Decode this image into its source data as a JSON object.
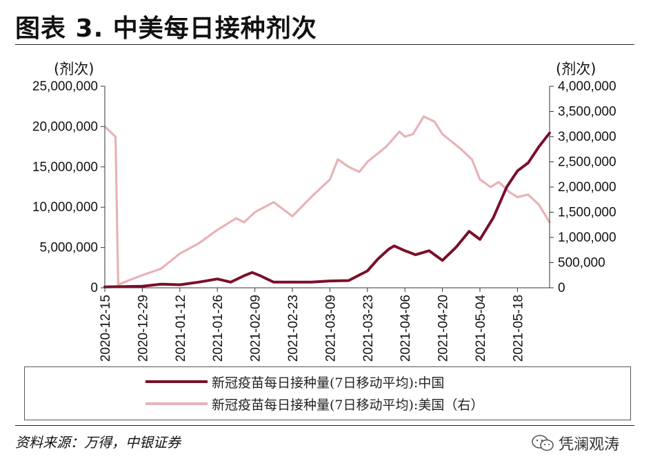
{
  "header": {
    "title": "图表 3. 中美每日接种剂次"
  },
  "footer": {
    "source": "资料来源：万得，中银证券",
    "watermark": "凭澜观涛"
  },
  "colors": {
    "china": "#7a0f2a",
    "us": "#e8b2b5",
    "axis": "#333333"
  },
  "chart_data": {
    "type": "line",
    "title": "图表 3. 中美每日接种剂次",
    "y_left": {
      "unit_label": "(剂次)",
      "range": [
        0,
        25000000
      ],
      "ticks": [
        0,
        5000000,
        10000000,
        15000000,
        20000000,
        25000000
      ],
      "tick_labels": [
        "0",
        "5,000,000",
        "10,000,000",
        "15,000,000",
        "20,000,000",
        "25,000,000"
      ]
    },
    "y_right": {
      "unit_label": "(剂次)",
      "range": [
        0,
        4000000
      ],
      "ticks": [
        0,
        500000,
        1000000,
        1500000,
        2000000,
        2500000,
        3000000,
        3500000,
        4000000
      ],
      "tick_labels": [
        "0",
        "500,000",
        "1,000,000",
        "1,500,000",
        "2,000,000",
        "2,500,000",
        "3,000,000",
        "3,500,000",
        "4,000,000"
      ]
    },
    "x": {
      "start": "2020-12-15",
      "end": "2021-05-30",
      "tick_labels": [
        "2020-12-15",
        "2020-12-29",
        "2021-01-12",
        "2021-01-26",
        "2021-02-09",
        "2021-02-23",
        "2021-03-09",
        "2021-03-23",
        "2021-04-06",
        "2021-04-20",
        "2021-05-04",
        "2021-05-18"
      ]
    },
    "series": [
      {
        "name": "新冠疫苗每日接种量(7日移动平均):中国",
        "axis": "left",
        "color": "#7a0f2a",
        "points": [
          [
            "2020-12-15",
            100000
          ],
          [
            "2020-12-22",
            150000
          ],
          [
            "2020-12-29",
            200000
          ],
          [
            "2021-01-05",
            450000
          ],
          [
            "2021-01-12",
            380000
          ],
          [
            "2021-01-19",
            700000
          ],
          [
            "2021-01-26",
            1100000
          ],
          [
            "2021-01-31",
            700000
          ],
          [
            "2021-02-05",
            1500000
          ],
          [
            "2021-02-08",
            1900000
          ],
          [
            "2021-02-11",
            1500000
          ],
          [
            "2021-02-16",
            700000
          ],
          [
            "2021-02-23",
            700000
          ],
          [
            "2021-03-02",
            700000
          ],
          [
            "2021-03-09",
            850000
          ],
          [
            "2021-03-16",
            900000
          ],
          [
            "2021-03-23",
            2100000
          ],
          [
            "2021-03-27",
            3600000
          ],
          [
            "2021-03-31",
            4800000
          ],
          [
            "2021-04-02",
            5200000
          ],
          [
            "2021-04-06",
            4600000
          ],
          [
            "2021-04-10",
            4100000
          ],
          [
            "2021-04-15",
            4600000
          ],
          [
            "2021-04-20",
            3400000
          ],
          [
            "2021-04-25",
            5000000
          ],
          [
            "2021-04-30",
            7000000
          ],
          [
            "2021-05-04",
            6000000
          ],
          [
            "2021-05-09",
            8700000
          ],
          [
            "2021-05-14",
            12500000
          ],
          [
            "2021-05-18",
            14500000
          ],
          [
            "2021-05-22",
            15500000
          ],
          [
            "2021-05-26",
            17500000
          ],
          [
            "2021-05-30",
            19200000
          ]
        ]
      },
      {
        "name": "新冠疫苗每日接种量(7日移动平均):美国（右）",
        "axis": "right",
        "color": "#e8b2b5",
        "points": [
          [
            "2020-12-15",
            3200000
          ],
          [
            "2020-12-17",
            3100000
          ],
          [
            "2020-12-19",
            3000000
          ],
          [
            "2020-12-20",
            60000
          ],
          [
            "2020-12-24",
            150000
          ],
          [
            "2020-12-29",
            250000
          ],
          [
            "2021-01-05",
            380000
          ],
          [
            "2021-01-12",
            680000
          ],
          [
            "2021-01-19",
            880000
          ],
          [
            "2021-01-26",
            1150000
          ],
          [
            "2021-02-02",
            1380000
          ],
          [
            "2021-02-05",
            1300000
          ],
          [
            "2021-02-09",
            1500000
          ],
          [
            "2021-02-16",
            1700000
          ],
          [
            "2021-02-23",
            1420000
          ],
          [
            "2021-03-02",
            1800000
          ],
          [
            "2021-03-09",
            2150000
          ],
          [
            "2021-03-12",
            2550000
          ],
          [
            "2021-03-16",
            2400000
          ],
          [
            "2021-03-20",
            2300000
          ],
          [
            "2021-03-23",
            2500000
          ],
          [
            "2021-03-30",
            2800000
          ],
          [
            "2021-04-04",
            3100000
          ],
          [
            "2021-04-06",
            3000000
          ],
          [
            "2021-04-09",
            3050000
          ],
          [
            "2021-04-13",
            3400000
          ],
          [
            "2021-04-17",
            3300000
          ],
          [
            "2021-04-20",
            3050000
          ],
          [
            "2021-04-27",
            2750000
          ],
          [
            "2021-05-01",
            2550000
          ],
          [
            "2021-05-04",
            2150000
          ],
          [
            "2021-05-08",
            2000000
          ],
          [
            "2021-05-11",
            2100000
          ],
          [
            "2021-05-15",
            1900000
          ],
          [
            "2021-05-18",
            1800000
          ],
          [
            "2021-05-22",
            1850000
          ],
          [
            "2021-05-26",
            1650000
          ],
          [
            "2021-05-30",
            1300000
          ]
        ]
      }
    ],
    "legend": [
      "新冠疫苗每日接种量(7日移动平均):中国",
      "新冠疫苗每日接种量(7日移动平均):美国（右）"
    ],
    "legend_position": "bottom",
    "grid": false
  }
}
